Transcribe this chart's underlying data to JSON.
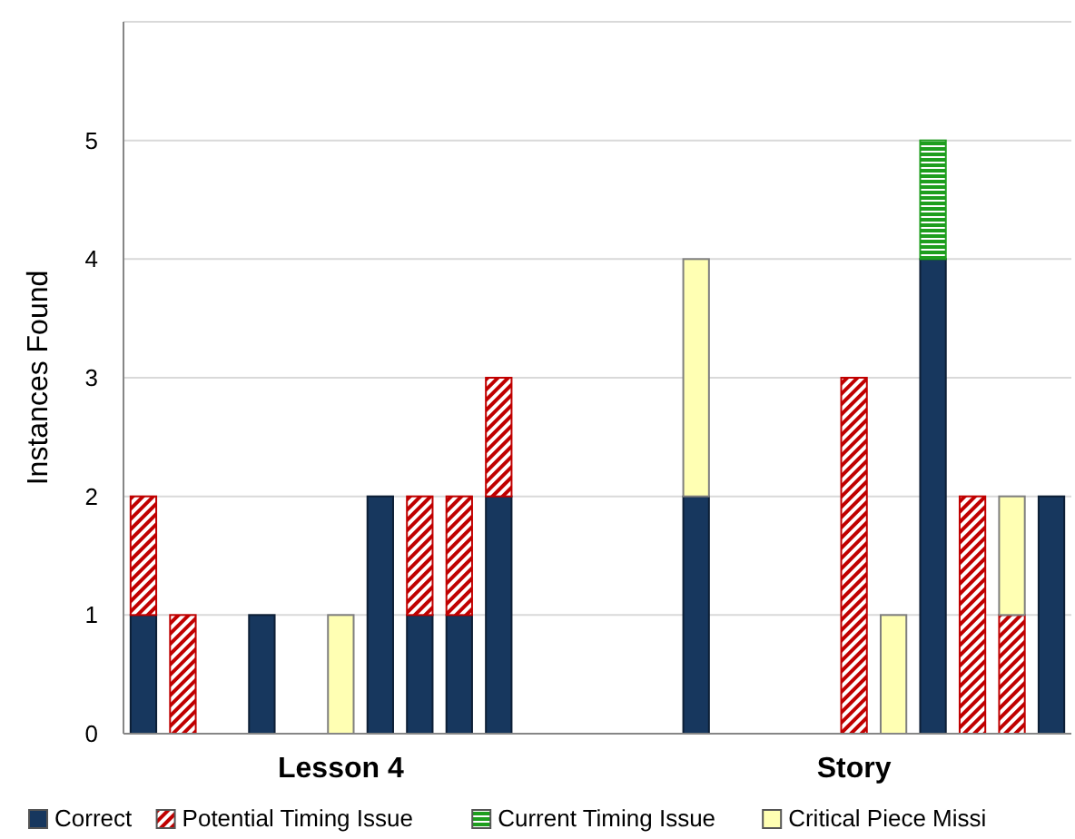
{
  "chart_data": {
    "type": "bar",
    "stacked": true,
    "ylabel": "Instances Found",
    "categories": [
      null,
      null,
      null,
      null,
      null,
      "Lesson 4",
      null,
      null,
      null,
      null,
      null,
      null,
      null,
      null,
      null,
      null,
      null,
      null,
      "Story",
      null,
      null,
      null,
      null,
      null
    ],
    "series": [
      {
        "name": "Correct",
        "color": "#17375e",
        "values": [
          1,
          0,
          0,
          1,
          0,
          0,
          2,
          1,
          1,
          2,
          0,
          0,
          0,
          0,
          2,
          0,
          0,
          0,
          0,
          0,
          4,
          0,
          0,
          2
        ]
      },
      {
        "name": "Potential Timing Issue",
        "color": "#c00000",
        "values": [
          1,
          1,
          0,
          0,
          0,
          0,
          0,
          1,
          1,
          1,
          0,
          0,
          0,
          0,
          0,
          0,
          0,
          0,
          3,
          0,
          0,
          2,
          1,
          0
        ]
      },
      {
        "name": "Current Timing Issue",
        "color": "#1e9e1e",
        "values": [
          0,
          0,
          0,
          0,
          0,
          0,
          0,
          0,
          0,
          0,
          0,
          0,
          0,
          0,
          0,
          0,
          0,
          0,
          0,
          0,
          1,
          0,
          0,
          0
        ]
      },
      {
        "name": "Critical Piece Missi",
        "color": "#ffffb3",
        "values": [
          0,
          0,
          0,
          0,
          0,
          1,
          0,
          0,
          0,
          0,
          0,
          0,
          0,
          0,
          2,
          0,
          0,
          0,
          0,
          1,
          0,
          0,
          1,
          0
        ]
      }
    ],
    "ylim": [
      0,
      6
    ],
    "yticks": [
      0,
      1,
      2,
      3,
      4,
      5,
      {
        "value": 6,
        "label": null
      }
    ],
    "grid": "y",
    "legend": "bottom"
  }
}
